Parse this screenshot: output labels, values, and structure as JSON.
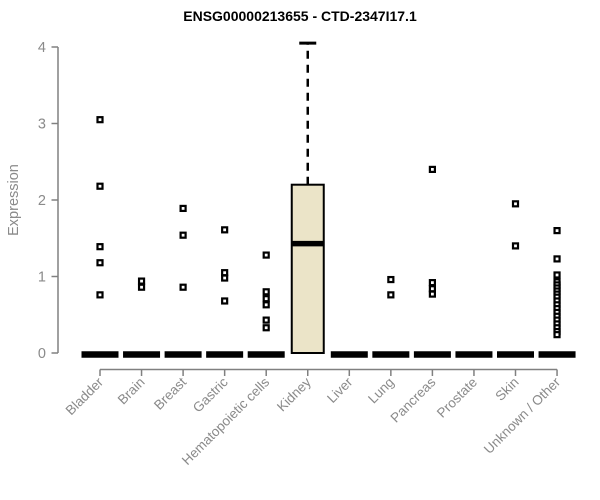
{
  "chart_data": {
    "type": "boxplot",
    "title": "ENSG00000213655 - CTD-2347I17.1",
    "ylabel": "Expression",
    "ylim": [
      0,
      4.1
    ],
    "yticks": [
      0,
      1,
      2,
      3,
      4
    ],
    "grid": false,
    "legend": "none",
    "colors": {
      "box_fill": "#ebe4c8",
      "axis_line": "#808080",
      "axis_text": "#8a8a8a",
      "data_color": "#000000",
      "background": "#ffffff"
    },
    "groups": [
      {
        "label": "Bladder",
        "median": 0,
        "points": [
          3.05,
          2.18,
          1.39,
          1.18,
          0.76
        ]
      },
      {
        "label": "Brain",
        "median": 0,
        "points": [
          0.94,
          0.86
        ]
      },
      {
        "label": "Breast",
        "median": 0,
        "points": [
          1.89,
          1.54,
          0.86
        ]
      },
      {
        "label": "Gastric",
        "median": 0,
        "points": [
          1.61,
          1.05,
          0.98,
          0.68
        ]
      },
      {
        "label": "Hematopoietic cells",
        "median": 0,
        "points": [
          1.28,
          0.8,
          0.71,
          0.63,
          0.43,
          0.33
        ]
      },
      {
        "label": "Kidney",
        "median": 1.43,
        "points": [],
        "box": {
          "q1": 0,
          "q3": 2.2,
          "whisker_low": 0,
          "whisker_high": 4.05
        }
      },
      {
        "label": "Liver",
        "median": 0,
        "points": []
      },
      {
        "label": "Lung",
        "median": 0,
        "points": [
          0.96,
          0.76
        ]
      },
      {
        "label": "Pancreas",
        "median": 0,
        "points": [
          2.4,
          0.92,
          0.84,
          0.77
        ]
      },
      {
        "label": "Prostate",
        "median": 0,
        "points": []
      },
      {
        "label": "Skin",
        "median": 0,
        "points": [
          1.95,
          1.4
        ]
      },
      {
        "label": "Unknown / Other",
        "median": 0,
        "points": [
          1.6,
          1.23,
          1.02,
          0.93,
          0.89,
          0.85,
          0.81,
          0.77,
          0.73,
          0.68,
          0.63,
          0.58,
          0.53,
          0.48,
          0.43,
          0.38,
          0.33,
          0.28,
          0.24
        ]
      }
    ]
  }
}
